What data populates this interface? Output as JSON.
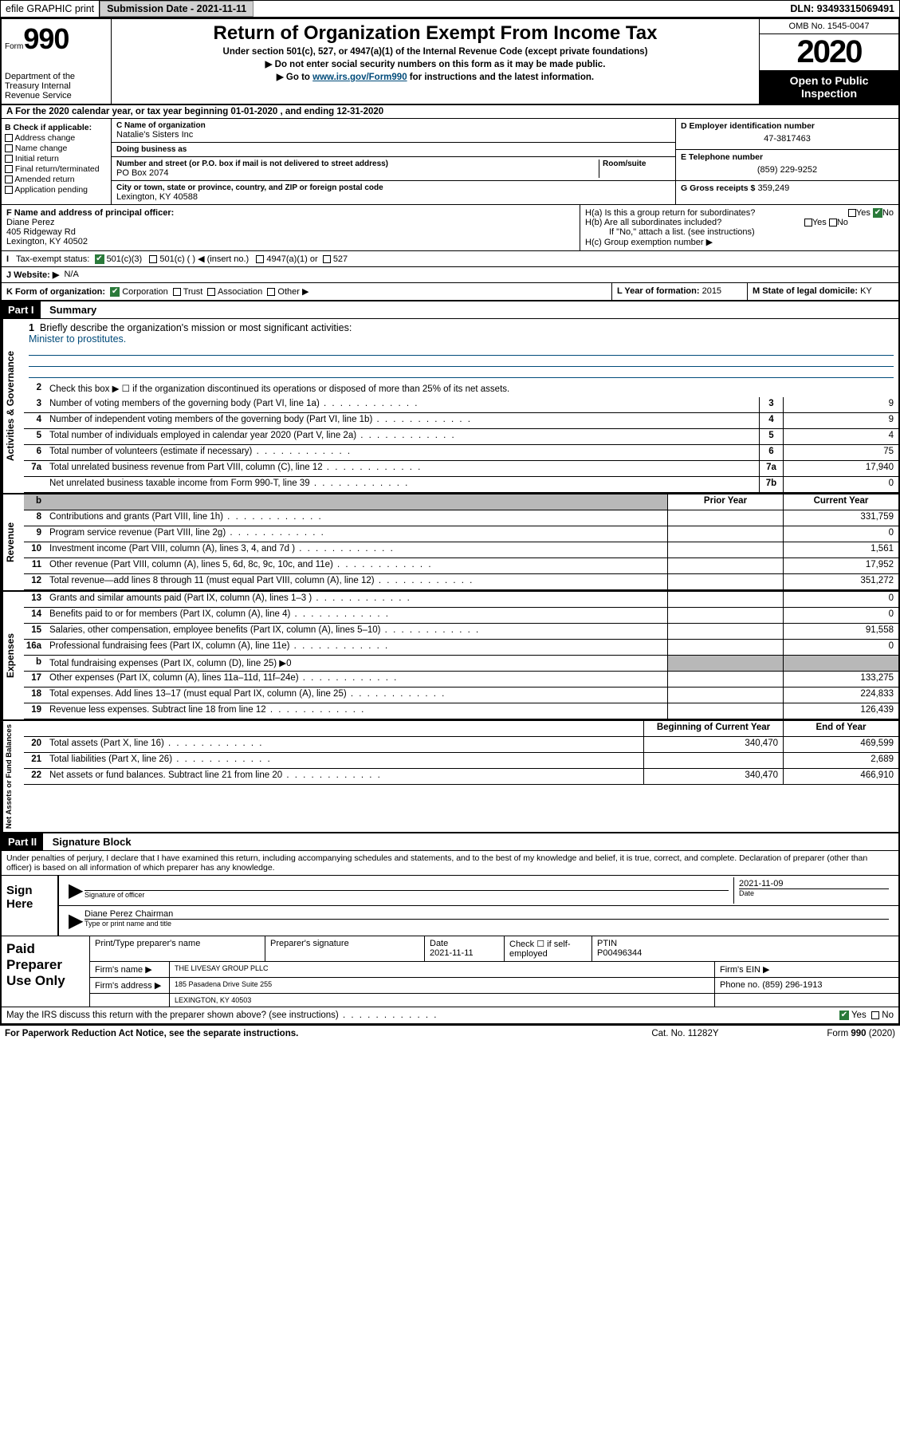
{
  "topbar": {
    "efile": "efile GRAPHIC print",
    "submission": "Submission Date - 2021-11-11",
    "dln": "DLN: 93493315069491"
  },
  "header": {
    "form_label": "Form",
    "form_num": "990",
    "title": "Return of Organization Exempt From Income Tax",
    "subtitle": "Under section 501(c), 527, or 4947(a)(1) of the Internal Revenue Code (except private foundations)",
    "note1": "▶ Do not enter social security numbers on this form as it may be made public.",
    "note2_pre": "▶ Go to ",
    "note2_link": "www.irs.gov/Form990",
    "note2_post": " for instructions and the latest information.",
    "dept": "Department of the Treasury\nInternal Revenue Service",
    "omb": "OMB No. 1545-0047",
    "year": "2020",
    "inspect": "Open to Public Inspection"
  },
  "row_a": "A For the 2020 calendar year, or tax year beginning 01-01-2020   , and ending 12-31-2020",
  "section_b": {
    "title": "B Check if applicable:",
    "items": [
      "Address change",
      "Name change",
      "Initial return",
      "Final return/terminated",
      "Amended return",
      "Application pending"
    ]
  },
  "section_c": {
    "name_label": "C Name of organization",
    "name": "Natalie's Sisters Inc",
    "dba_label": "Doing business as",
    "dba": "",
    "addr_label": "Number and street (or P.O. box if mail is not delivered to street address)",
    "room_label": "Room/suite",
    "addr": "PO Box 2074",
    "city_label": "City or town, state or province, country, and ZIP or foreign postal code",
    "city": "Lexington, KY  40588"
  },
  "section_d": {
    "ein_label": "D Employer identification number",
    "ein": "47-3817463",
    "tel_label": "E Telephone number",
    "tel": "(859) 229-9252",
    "gross_label": "G Gross receipts $",
    "gross": "359,249"
  },
  "section_f": {
    "label": "F  Name and address of principal officer:",
    "name": "Diane Perez",
    "addr1": "405 Ridgeway Rd",
    "addr2": "Lexington, KY  40502"
  },
  "section_h": {
    "ha": "H(a)  Is this a group return for subordinates?",
    "hb": "H(b)  Are all subordinates included?",
    "hb_note": "If \"No,\" attach a list. (see instructions)",
    "hc": "H(c)  Group exemption number ▶",
    "yes": "Yes",
    "no": "No"
  },
  "row_i": {
    "label": "Tax-exempt status:",
    "opts": [
      "501(c)(3)",
      "501(c) (  ) ◀ (insert no.)",
      "4947(a)(1) or",
      "527"
    ]
  },
  "row_j": {
    "label": "J  Website: ▶",
    "val": "N/A"
  },
  "row_k": {
    "label": "K Form of organization:",
    "opts": [
      "Corporation",
      "Trust",
      "Association",
      "Other ▶"
    ]
  },
  "row_l": {
    "label": "L Year of formation:",
    "val": "2015"
  },
  "row_m": {
    "label": "M State of legal domicile:",
    "val": "KY"
  },
  "part1": {
    "header": "Part I",
    "title": "Summary"
  },
  "summary": {
    "q1": "Briefly describe the organization's mission or most significant activities:",
    "mission": "Minister to prostitutes.",
    "q2": "Check this box ▶ ☐  if the organization discontinued its operations or disposed of more than 25% of its net assets.",
    "rows_gov": [
      {
        "n": "3",
        "d": "Number of voting members of the governing body (Part VI, line 1a)",
        "b": "3",
        "v": "9"
      },
      {
        "n": "4",
        "d": "Number of independent voting members of the governing body (Part VI, line 1b)",
        "b": "4",
        "v": "9"
      },
      {
        "n": "5",
        "d": "Total number of individuals employed in calendar year 2020 (Part V, line 2a)",
        "b": "5",
        "v": "4"
      },
      {
        "n": "6",
        "d": "Total number of volunteers (estimate if necessary)",
        "b": "6",
        "v": "75"
      },
      {
        "n": "7a",
        "d": "Total unrelated business revenue from Part VIII, column (C), line 12",
        "b": "7a",
        "v": "17,940"
      },
      {
        "n": "",
        "d": "Net unrelated business taxable income from Form 990-T, line 39",
        "b": "7b",
        "v": "0"
      }
    ],
    "col_prior": "Prior Year",
    "col_current": "Current Year",
    "rows_rev": [
      {
        "n": "8",
        "d": "Contributions and grants (Part VIII, line 1h)",
        "p": "",
        "c": "331,759"
      },
      {
        "n": "9",
        "d": "Program service revenue (Part VIII, line 2g)",
        "p": "",
        "c": "0"
      },
      {
        "n": "10",
        "d": "Investment income (Part VIII, column (A), lines 3, 4, and 7d )",
        "p": "",
        "c": "1,561"
      },
      {
        "n": "11",
        "d": "Other revenue (Part VIII, column (A), lines 5, 6d, 8c, 9c, 10c, and 11e)",
        "p": "",
        "c": "17,952"
      },
      {
        "n": "12",
        "d": "Total revenue—add lines 8 through 11 (must equal Part VIII, column (A), line 12)",
        "p": "",
        "c": "351,272"
      }
    ],
    "rows_exp": [
      {
        "n": "13",
        "d": "Grants and similar amounts paid (Part IX, column (A), lines 1–3 )",
        "p": "",
        "c": "0"
      },
      {
        "n": "14",
        "d": "Benefits paid to or for members (Part IX, column (A), line 4)",
        "p": "",
        "c": "0"
      },
      {
        "n": "15",
        "d": "Salaries, other compensation, employee benefits (Part IX, column (A), lines 5–10)",
        "p": "",
        "c": "91,558"
      },
      {
        "n": "16a",
        "d": "Professional fundraising fees (Part IX, column (A), line 11e)",
        "p": "",
        "c": "0"
      },
      {
        "n": "b",
        "d": "Total fundraising expenses (Part IX, column (D), line 25) ▶0",
        "p": "grey",
        "c": "grey"
      },
      {
        "n": "17",
        "d": "Other expenses (Part IX, column (A), lines 11a–11d, 11f–24e)",
        "p": "",
        "c": "133,275"
      },
      {
        "n": "18",
        "d": "Total expenses. Add lines 13–17 (must equal Part IX, column (A), line 25)",
        "p": "",
        "c": "224,833"
      },
      {
        "n": "19",
        "d": "Revenue less expenses. Subtract line 18 from line 12",
        "p": "",
        "c": "126,439"
      }
    ],
    "col_begin": "Beginning of Current Year",
    "col_end": "End of Year",
    "rows_net": [
      {
        "n": "20",
        "d": "Total assets (Part X, line 16)",
        "p": "340,470",
        "c": "469,599"
      },
      {
        "n": "21",
        "d": "Total liabilities (Part X, line 26)",
        "p": "",
        "c": "2,689"
      },
      {
        "n": "22",
        "d": "Net assets or fund balances. Subtract line 21 from line 20",
        "p": "340,470",
        "c": "466,910"
      }
    ]
  },
  "side_labels": {
    "gov": "Activities & Governance",
    "rev": "Revenue",
    "exp": "Expenses",
    "net": "Net Assets or Fund Balances"
  },
  "part2": {
    "header": "Part II",
    "title": "Signature Block"
  },
  "declare": "Under penalties of perjury, I declare that I have examined this return, including accompanying schedules and statements, and to the best of my knowledge and belief, it is true, correct, and complete. Declaration of preparer (other than officer) is based on all information of which preparer has any knowledge.",
  "sign": {
    "label": "Sign Here",
    "sig_label": "Signature of officer",
    "date": "2021-11-09",
    "date_label": "Date",
    "name": "Diane Perez  Chairman",
    "name_label": "Type or print name and title"
  },
  "paid": {
    "label": "Paid Preparer Use Only",
    "r1": {
      "c1": "Print/Type preparer's name",
      "c2": "Preparer's signature",
      "c3": "Date\n2021-11-11",
      "c4": "Check ☐ if self-employed",
      "c5": "PTIN\nP00496344"
    },
    "r2": {
      "label": "Firm's name    ▶",
      "val": "THE LIVESAY GROUP PLLC",
      "ein": "Firm's EIN ▶"
    },
    "r3": {
      "label": "Firm's address ▶",
      "val": "185 Pasadena Drive Suite 255",
      "tel": "Phone no. (859) 296-1913"
    },
    "r4": "LEXINGTON, KY  40503"
  },
  "discuss": "May the IRS discuss this return with the preparer shown above? (see instructions)",
  "footer": {
    "left": "For Paperwork Reduction Act Notice, see the separate instructions.",
    "mid": "Cat. No. 11282Y",
    "right": "Form 990 (2020)"
  }
}
